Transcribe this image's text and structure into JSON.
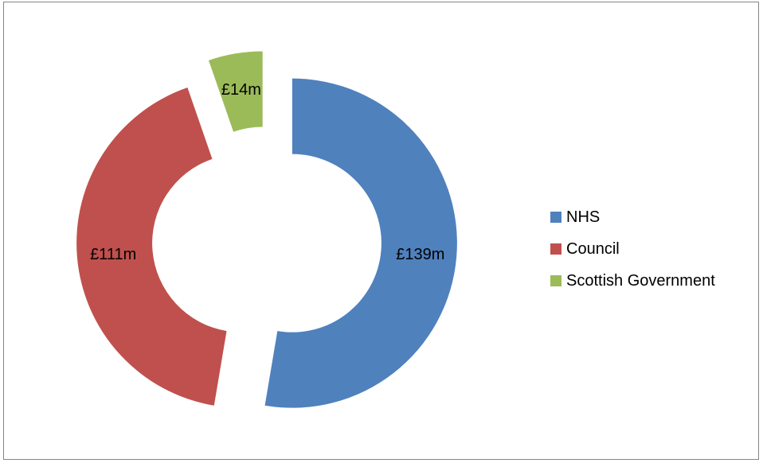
{
  "chart_data": {
    "type": "pie",
    "variant": "exploded-donut",
    "categories": [
      "NHS",
      "Council",
      "Scottish Government"
    ],
    "values": [
      139,
      111,
      14
    ],
    "data_labels": [
      "£139m",
      "£111m",
      "£14m"
    ],
    "colors": [
      "#4F81BD",
      "#C0504D",
      "#9BBB59"
    ],
    "legend_position": "right"
  }
}
